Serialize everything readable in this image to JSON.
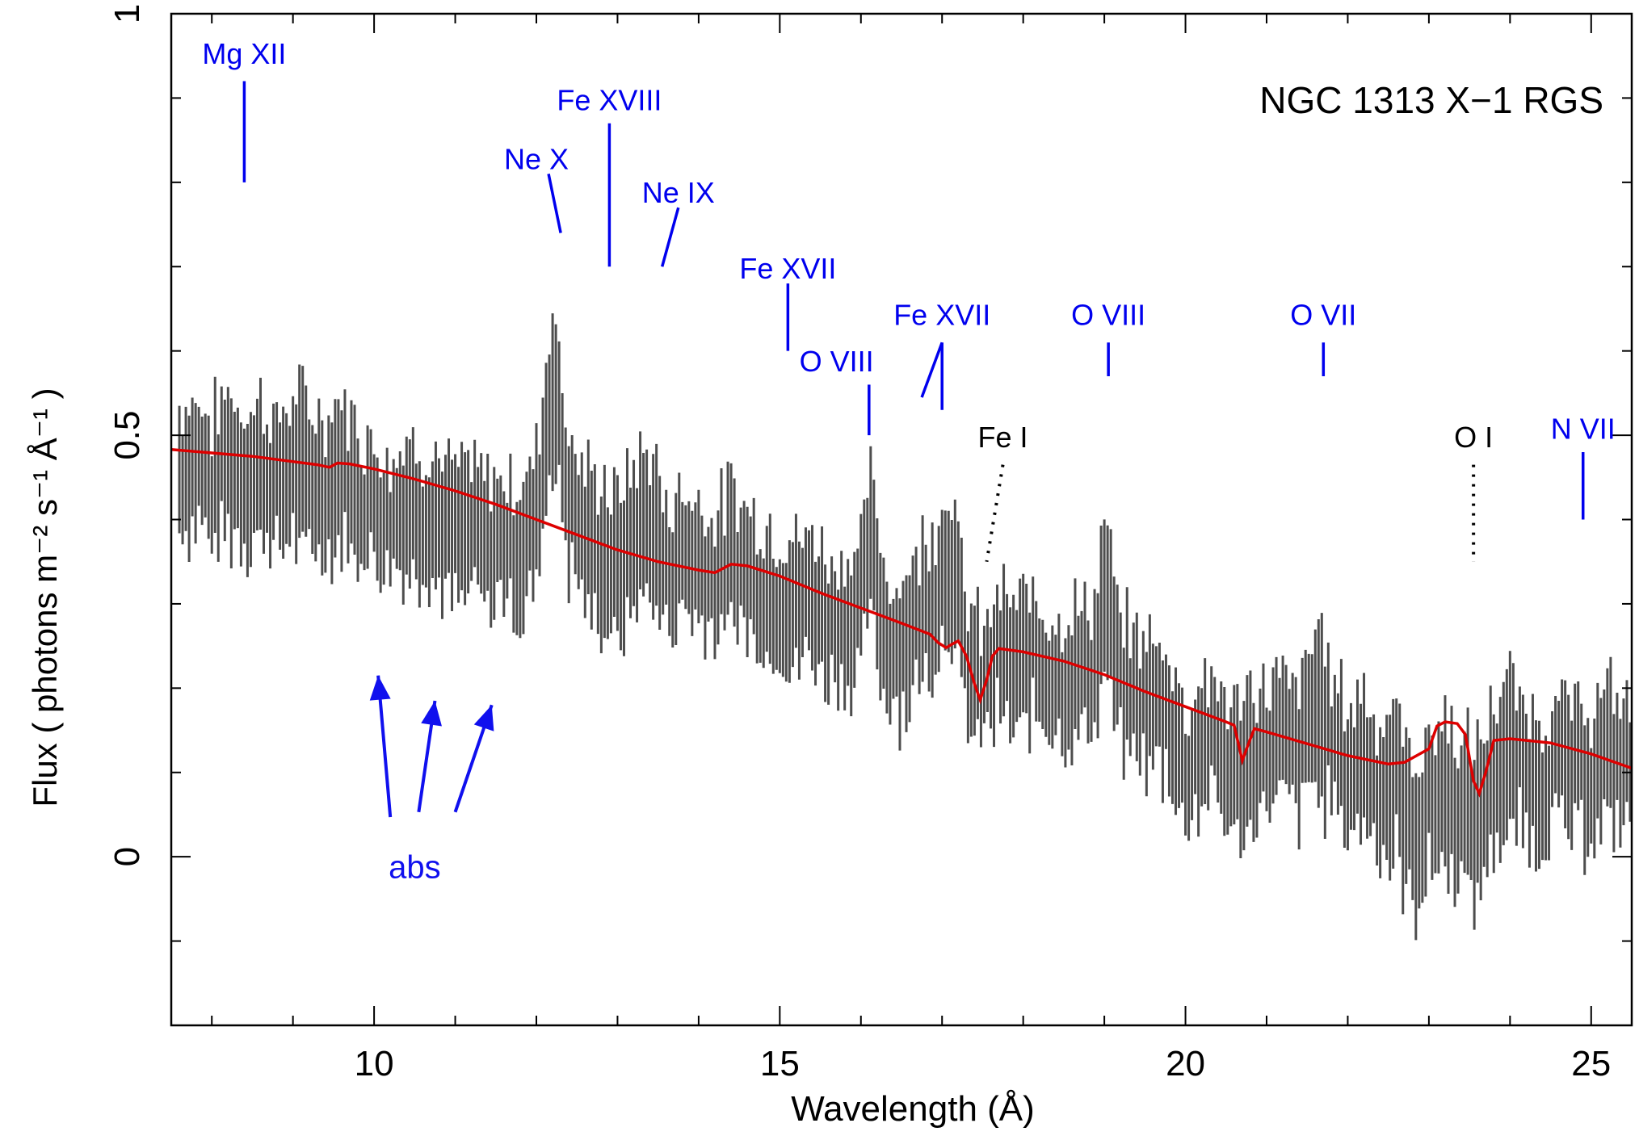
{
  "chart_data": {
    "type": "scatter",
    "title": "NGC 1313 X−1 RGS",
    "xlabel": "Wavelength (Å)",
    "ylabel": "Flux ( photons m⁻² s⁻¹ Å⁻¹ )",
    "xlim": [
      7.5,
      25.5
    ],
    "ylim": [
      -0.2,
      1.0
    ],
    "x_ticks": [
      10,
      15,
      20,
      25
    ],
    "y_ticks": [
      0,
      0.5,
      1
    ],
    "y_tick_labels": [
      "0",
      "0.5",
      "1"
    ],
    "x_tick_labels": [
      "10",
      "15",
      "20",
      "25"
    ],
    "grid": false,
    "colors": {
      "data": "#4d4d4d",
      "model": "#dd0000",
      "emission_label": "#0000ee",
      "absorption_label": "#000000"
    },
    "series": [
      {
        "kind": "data_with_errorbars",
        "description_points": [
          [
            7.6,
            0.46,
            0.07
          ],
          [
            7.8,
            0.47,
            0.07
          ],
          [
            8.0,
            0.44,
            0.07
          ],
          [
            8.2,
            0.47,
            0.08
          ],
          [
            8.4,
            0.45,
            0.07
          ],
          [
            8.6,
            0.46,
            0.08
          ],
          [
            8.8,
            0.44,
            0.07
          ],
          [
            9.0,
            0.46,
            0.08
          ],
          [
            9.2,
            0.45,
            0.08
          ],
          [
            9.4,
            0.44,
            0.07
          ],
          [
            9.6,
            0.46,
            0.08
          ],
          [
            9.8,
            0.43,
            0.07
          ],
          [
            10.0,
            0.42,
            0.07
          ],
          [
            10.2,
            0.4,
            0.07
          ],
          [
            10.4,
            0.42,
            0.07
          ],
          [
            10.6,
            0.41,
            0.07
          ],
          [
            10.8,
            0.4,
            0.07
          ],
          [
            11.0,
            0.38,
            0.07
          ],
          [
            11.2,
            0.39,
            0.07
          ],
          [
            11.4,
            0.37,
            0.07
          ],
          [
            11.6,
            0.38,
            0.07
          ],
          [
            11.8,
            0.36,
            0.07
          ],
          [
            12.0,
            0.4,
            0.08
          ],
          [
            12.2,
            0.57,
            0.09
          ],
          [
            12.4,
            0.42,
            0.08
          ],
          [
            12.6,
            0.38,
            0.07
          ],
          [
            12.8,
            0.36,
            0.08
          ],
          [
            13.0,
            0.34,
            0.08
          ],
          [
            13.2,
            0.38,
            0.08
          ],
          [
            13.4,
            0.4,
            0.08
          ],
          [
            13.6,
            0.34,
            0.07
          ],
          [
            13.8,
            0.36,
            0.07
          ],
          [
            14.0,
            0.35,
            0.07
          ],
          [
            14.2,
            0.33,
            0.07
          ],
          [
            14.4,
            0.36,
            0.07
          ],
          [
            14.6,
            0.34,
            0.07
          ],
          [
            14.8,
            0.32,
            0.07
          ],
          [
            15.0,
            0.31,
            0.07
          ],
          [
            15.2,
            0.3,
            0.07
          ],
          [
            15.4,
            0.31,
            0.07
          ],
          [
            15.6,
            0.28,
            0.07
          ],
          [
            15.8,
            0.28,
            0.07
          ],
          [
            16.0,
            0.29,
            0.07
          ],
          [
            16.1,
            0.38,
            0.08
          ],
          [
            16.3,
            0.26,
            0.07
          ],
          [
            16.5,
            0.25,
            0.07
          ],
          [
            16.7,
            0.28,
            0.08
          ],
          [
            16.9,
            0.31,
            0.08
          ],
          [
            17.1,
            0.36,
            0.08
          ],
          [
            17.3,
            0.23,
            0.07
          ],
          [
            17.5,
            0.2,
            0.06
          ],
          [
            17.7,
            0.24,
            0.07
          ],
          [
            17.9,
            0.22,
            0.07
          ],
          [
            18.1,
            0.24,
            0.07
          ],
          [
            18.3,
            0.22,
            0.07
          ],
          [
            18.5,
            0.21,
            0.07
          ],
          [
            18.7,
            0.22,
            0.07
          ],
          [
            18.9,
            0.23,
            0.07
          ],
          [
            19.0,
            0.32,
            0.08
          ],
          [
            19.2,
            0.2,
            0.07
          ],
          [
            19.4,
            0.19,
            0.07
          ],
          [
            19.6,
            0.18,
            0.07
          ],
          [
            19.8,
            0.17,
            0.07
          ],
          [
            20.0,
            0.1,
            0.07
          ],
          [
            20.2,
            0.14,
            0.07
          ],
          [
            20.4,
            0.13,
            0.07
          ],
          [
            20.6,
            0.1,
            0.07
          ],
          [
            20.8,
            0.12,
            0.07
          ],
          [
            21.0,
            0.13,
            0.07
          ],
          [
            21.2,
            0.14,
            0.07
          ],
          [
            21.4,
            0.12,
            0.07
          ],
          [
            21.6,
            0.18,
            0.09
          ],
          [
            21.8,
            0.14,
            0.08
          ],
          [
            22.0,
            0.1,
            0.07
          ],
          [
            22.2,
            0.12,
            0.08
          ],
          [
            22.4,
            0.08,
            0.07
          ],
          [
            22.6,
            0.09,
            0.08
          ],
          [
            22.8,
            0.02,
            0.08
          ],
          [
            23.0,
            0.06,
            0.08
          ],
          [
            23.2,
            0.08,
            0.08
          ],
          [
            23.4,
            0.05,
            0.08
          ],
          [
            23.6,
            0.04,
            0.08
          ],
          [
            23.8,
            0.1,
            0.08
          ],
          [
            24.0,
            0.12,
            0.08
          ],
          [
            24.2,
            0.1,
            0.07
          ],
          [
            24.4,
            0.09,
            0.07
          ],
          [
            24.6,
            0.11,
            0.07
          ],
          [
            24.8,
            0.1,
            0.07
          ],
          [
            25.0,
            0.1,
            0.07
          ],
          [
            25.2,
            0.12,
            0.07
          ],
          [
            25.4,
            0.11,
            0.07
          ]
        ]
      },
      {
        "kind": "model",
        "points": [
          [
            7.5,
            0.483
          ],
          [
            8.5,
            0.475
          ],
          [
            9.3,
            0.465
          ],
          [
            9.45,
            0.462
          ],
          [
            9.55,
            0.467
          ],
          [
            9.7,
            0.466
          ],
          [
            10.0,
            0.46
          ],
          [
            10.5,
            0.448
          ],
          [
            11.0,
            0.434
          ],
          [
            11.5,
            0.418
          ],
          [
            12.0,
            0.4
          ],
          [
            12.5,
            0.382
          ],
          [
            13.0,
            0.364
          ],
          [
            13.5,
            0.35
          ],
          [
            14.0,
            0.34
          ],
          [
            14.2,
            0.337
          ],
          [
            14.4,
            0.347
          ],
          [
            14.6,
            0.345
          ],
          [
            15.0,
            0.333
          ],
          [
            15.5,
            0.313
          ],
          [
            16.0,
            0.295
          ],
          [
            16.5,
            0.277
          ],
          [
            16.85,
            0.264
          ],
          [
            16.95,
            0.254
          ],
          [
            17.05,
            0.248
          ],
          [
            17.12,
            0.252
          ],
          [
            17.2,
            0.256
          ],
          [
            17.3,
            0.238
          ],
          [
            17.4,
            0.205
          ],
          [
            17.47,
            0.186
          ],
          [
            17.55,
            0.21
          ],
          [
            17.62,
            0.238
          ],
          [
            17.7,
            0.247
          ],
          [
            18.0,
            0.243
          ],
          [
            18.5,
            0.232
          ],
          [
            19.0,
            0.216
          ],
          [
            19.5,
            0.196
          ],
          [
            20.0,
            0.178
          ],
          [
            20.5,
            0.16
          ],
          [
            20.6,
            0.156
          ],
          [
            20.7,
            0.114
          ],
          [
            20.78,
            0.135
          ],
          [
            20.85,
            0.152
          ],
          [
            21.0,
            0.148
          ],
          [
            21.5,
            0.134
          ],
          [
            22.0,
            0.12
          ],
          [
            22.5,
            0.11
          ],
          [
            22.7,
            0.112
          ],
          [
            22.85,
            0.12
          ],
          [
            23.0,
            0.128
          ],
          [
            23.1,
            0.155
          ],
          [
            23.2,
            0.16
          ],
          [
            23.35,
            0.158
          ],
          [
            23.45,
            0.145
          ],
          [
            23.55,
            0.09
          ],
          [
            23.62,
            0.075
          ],
          [
            23.7,
            0.1
          ],
          [
            23.8,
            0.138
          ],
          [
            24.0,
            0.14
          ],
          [
            24.5,
            0.135
          ],
          [
            25.0,
            0.122
          ],
          [
            25.5,
            0.105
          ]
        ]
      }
    ],
    "annotations": [
      {
        "label": "Mg XII",
        "x": 8.4,
        "kind": "emission"
      },
      {
        "label": "Ne X",
        "x": 12.15,
        "kind": "emission"
      },
      {
        "label": "Fe XVIII",
        "x": 12.9,
        "kind": "emission"
      },
      {
        "label": "Ne IX",
        "x": 13.5,
        "kind": "emission"
      },
      {
        "label": "Fe XVII",
        "x": 15.0,
        "kind": "emission"
      },
      {
        "label": "O VIII",
        "x": 16.0,
        "kind": "emission"
      },
      {
        "label": "Fe XVII",
        "x": 17.0,
        "kind": "emission"
      },
      {
        "label": "O VIII",
        "x": 19.0,
        "kind": "emission"
      },
      {
        "label": "O VII",
        "x": 21.6,
        "kind": "emission"
      },
      {
        "label": "N VII",
        "x": 24.8,
        "kind": "emission"
      },
      {
        "label": "Fe I",
        "x": 17.5,
        "kind": "absorption"
      },
      {
        "label": "O I",
        "x": 23.55,
        "kind": "absorption"
      },
      {
        "label": "abs",
        "x": 10.5,
        "kind": "absorption_arrows"
      }
    ]
  }
}
